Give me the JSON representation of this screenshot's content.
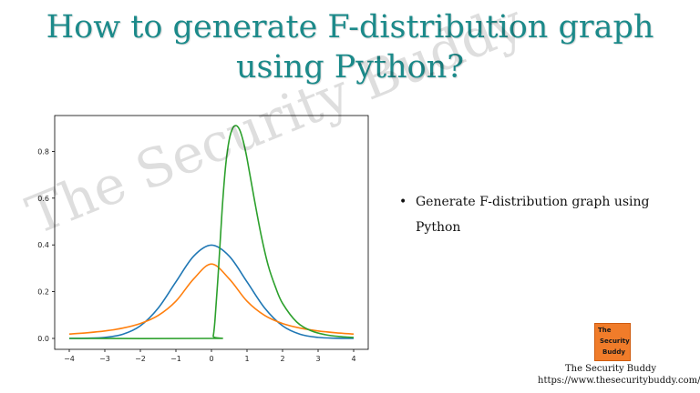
{
  "slide": {
    "title_line1": "How to generate F-distribution graph",
    "title_line2": "using Python?",
    "title_color": "#1c8a8a",
    "watermark": "The Security Buddy",
    "bullets": [
      "Generate F-distribution graph using Python"
    ],
    "logo": {
      "line1": "The",
      "line2": "Security",
      "line3": "Buddy"
    },
    "footer": {
      "name": "The Security Buddy",
      "url": "https://www.thesecuritybuddy.com/"
    }
  },
  "chart_data": {
    "type": "line",
    "xlim": [
      -4,
      4
    ],
    "ylim": [
      0,
      0.93
    ],
    "xticks": [
      "−4",
      "−3",
      "−2",
      "−1",
      "0",
      "1",
      "2",
      "3",
      "4"
    ],
    "yticks": [
      "0.0",
      "0.2",
      "0.4",
      "0.6",
      "0.8"
    ],
    "series": [
      {
        "color": "#1f77b4",
        "x": [
          -4,
          -3.5,
          -3,
          -2.5,
          -2,
          -1.5,
          -1,
          -0.5,
          0,
          0.5,
          1,
          1.5,
          2,
          2.5,
          3,
          3.5,
          4
        ],
        "y": [
          0.0001,
          0.0009,
          0.0044,
          0.0175,
          0.054,
          0.1295,
          0.242,
          0.352,
          0.3989,
          0.352,
          0.242,
          0.1295,
          0.054,
          0.0175,
          0.0044,
          0.0009,
          0.0001
        ]
      },
      {
        "color": "#ff7f0e",
        "x": [
          -4,
          -3.5,
          -3,
          -2.5,
          -2,
          -1.5,
          -1,
          -0.5,
          0,
          0.5,
          1,
          1.5,
          2,
          2.5,
          3,
          3.5,
          4
        ],
        "y": [
          0.0187,
          0.0241,
          0.0318,
          0.0439,
          0.0637,
          0.0979,
          0.1592,
          0.2546,
          0.3183,
          0.2546,
          0.1592,
          0.0979,
          0.0637,
          0.0439,
          0.0318,
          0.0241,
          0.0187
        ]
      },
      {
        "color": "#2ca02c",
        "x": [
          -4,
          0,
          0.05,
          0.1,
          0.2,
          0.3,
          0.4,
          0.5,
          0.6,
          0.7,
          0.8,
          0.9,
          1.0,
          1.2,
          1.4,
          1.6,
          1.8,
          2.0,
          2.4,
          2.8,
          3.2,
          3.6,
          4.0
        ],
        "y": [
          0,
          0,
          0.01,
          0.08,
          0.3,
          0.55,
          0.74,
          0.85,
          0.9,
          0.91,
          0.89,
          0.84,
          0.77,
          0.6,
          0.44,
          0.31,
          0.22,
          0.15,
          0.07,
          0.033,
          0.016,
          0.008,
          0.004
        ]
      }
    ]
  }
}
